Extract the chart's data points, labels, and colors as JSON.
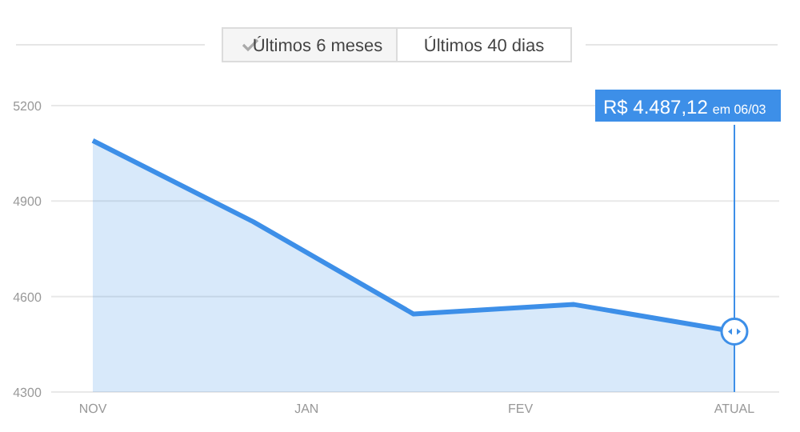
{
  "chart_data": {
    "type": "area",
    "categories": [
      "NOV",
      null,
      null,
      null,
      "JAN",
      null,
      null,
      null,
      "FEV",
      null,
      null,
      null,
      "ATUAL"
    ],
    "series": [
      {
        "color": "#3d8fe8",
        "values": [
          5090,
          null,
          null,
          4835,
          null,
          null,
          4545,
          null,
          null,
          4575,
          null,
          null,
          4490
        ]
      }
    ],
    "ylim": [
      4300,
      5200
    ],
    "yticks": [
      4300,
      4600,
      4900,
      5200
    ],
    "grid": "y",
    "ref_lines": [
      {
        "axis": "x",
        "value": "ATUAL",
        "color": "#3d8fe8"
      }
    ],
    "annotations": [
      "Últimos 6 meses",
      "Últimos 40 dias",
      "R$ 4.487,12 em 06/03"
    ]
  }
}
